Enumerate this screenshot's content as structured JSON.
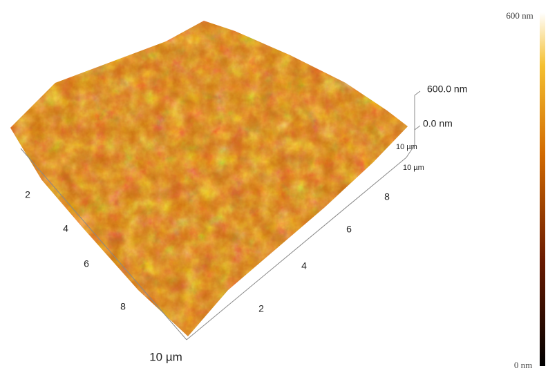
{
  "colorbar": {
    "max_label": "600 nm",
    "min_label": "0 nm"
  },
  "z_axis": {
    "top_label": "600.0 nm",
    "bottom_label": "0.0 nm",
    "corner_labels": [
      "10 µm",
      "10 µm"
    ]
  },
  "left_axis": {
    "ticks": [
      "2",
      "4",
      "6",
      "8"
    ],
    "end_label": "10 µm"
  },
  "right_axis": {
    "ticks": [
      "2",
      "4",
      "6",
      "8"
    ]
  }
}
